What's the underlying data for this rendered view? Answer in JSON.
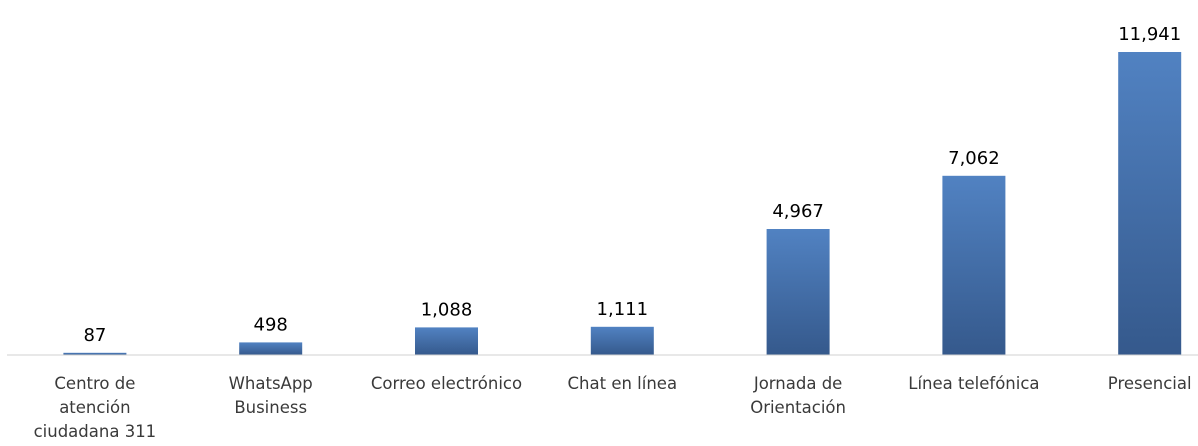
{
  "chart_data": {
    "type": "bar",
    "categories": [
      "Centro de atención ciudadana 311",
      "WhatsApp Business",
      "Correo electrónico",
      "Chat en línea",
      "Jornada de Orientación",
      "Línea telefónica",
      "Presencial"
    ],
    "category_lines": [
      [
        "Centro de",
        "atención",
        "ciudadana 311"
      ],
      [
        "WhatsApp",
        "Business"
      ],
      [
        "Correo electrónico"
      ],
      [
        "Chat en línea"
      ],
      [
        "Jornada de",
        "Orientación"
      ],
      [
        "Línea telefónica"
      ],
      [
        "Presencial"
      ]
    ],
    "values": [
      87,
      498,
      1088,
      1111,
      4967,
      7062,
      11941
    ],
    "value_labels": [
      "87",
      "498",
      "1,088",
      "1,111",
      "4,967",
      "7,062",
      "11,941"
    ],
    "title": "",
    "xlabel": "",
    "ylabel": "",
    "ylim": [
      0,
      11941
    ],
    "grid": false,
    "legend": "none",
    "colors": {
      "bar_top": "#5182c2",
      "bar_bottom": "#35598c",
      "axis": "#d0d0d0"
    }
  }
}
